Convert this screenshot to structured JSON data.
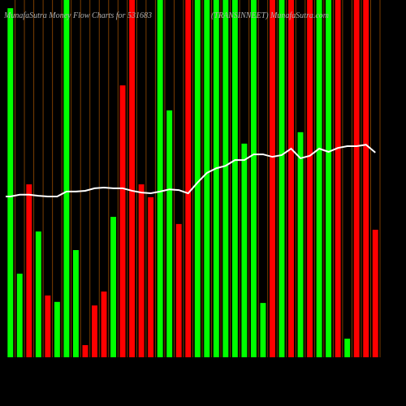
{
  "chart_data": {
    "type": "bar",
    "title": "MunafaSutra  Money Flow  Charts for 531683",
    "subtitle": "(TRANSINNEET) MunafaSutra.com",
    "values": [
      97.7,
      23.4,
      48.4,
      35.2,
      17.3,
      15.5,
      100,
      30,
      3.4,
      14.5,
      18.4,
      39.3,
      76.1,
      100,
      48.4,
      44.8,
      100,
      69.1,
      37.3,
      100,
      100,
      100,
      100,
      100,
      100,
      59.8,
      100,
      15.2,
      100,
      100,
      100,
      63,
      100,
      100,
      100,
      100,
      5.2,
      100,
      100,
      35.7
    ],
    "colors": [
      "#00ff00",
      "#00ff00",
      "#ff0000",
      "#00ff00",
      "#ff0000",
      "#00ff00",
      "#00ff00",
      "#00ff00",
      "#ff0000",
      "#ff0000",
      "#ff0000",
      "#00ff00",
      "#ff0000",
      "#ff0000",
      "#ff0000",
      "#ff0000",
      "#00ff00",
      "#00ff00",
      "#ff0000",
      "#ff0000",
      "#00ff00",
      "#00ff00",
      "#00ff00",
      "#00ff00",
      "#00ff00",
      "#00ff00",
      "#00ff00",
      "#00ff00",
      "#ff0000",
      "#00ff00",
      "#ff0000",
      "#00ff00",
      "#ff0000",
      "#00ff00",
      "#00ff00",
      "#ff0000",
      "#00ff00",
      "#ff0000",
      "#ff0000",
      "#ff0000"
    ],
    "line": {
      "color": "#ffffff",
      "values": [
        45,
        45.5,
        45.5,
        45.2,
        45,
        45,
        46.4,
        46.4,
        46.6,
        47.3,
        47.5,
        47.3,
        47.3,
        46.6,
        46.1,
        45.9,
        46.4,
        47,
        46.8,
        45.9,
        48.9,
        51.6,
        52.9,
        53.6,
        55.2,
        55.2,
        56.8,
        56.8,
        56.1,
        56.6,
        58.4,
        55.7,
        56.4,
        58.4,
        57.5,
        58.6,
        59.1,
        59.1,
        59.5,
        57.3
      ]
    },
    "ylim": [
      0,
      100
    ]
  }
}
